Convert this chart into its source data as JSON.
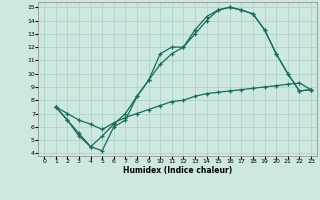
{
  "xlabel": "Humidex (Indice chaleur)",
  "bg_color": "#cce8e0",
  "line_color": "#1a6b5a",
  "grid_color": "#aacfc8",
  "xlim": [
    -0.5,
    23.5
  ],
  "ylim": [
    3.8,
    15.4
  ],
  "xticks": [
    0,
    1,
    2,
    3,
    4,
    5,
    6,
    7,
    8,
    9,
    10,
    11,
    12,
    13,
    14,
    15,
    16,
    17,
    18,
    19,
    20,
    21,
    22,
    23
  ],
  "yticks": [
    4,
    5,
    6,
    7,
    8,
    9,
    10,
    11,
    12,
    13,
    14,
    15
  ],
  "line1_x": [
    1,
    2,
    3,
    4,
    5,
    6,
    7,
    8,
    9,
    10,
    11,
    12,
    13,
    14,
    15,
    16,
    17,
    18,
    19,
    20,
    21,
    22,
    23
  ],
  "line1_y": [
    7.5,
    6.5,
    5.5,
    4.5,
    4.2,
    6.0,
    6.5,
    8.3,
    9.5,
    10.7,
    11.5,
    12.0,
    13.3,
    14.3,
    14.8,
    15.0,
    14.8,
    14.5,
    13.3,
    11.5,
    10.0,
    8.7,
    8.8
  ],
  "line2_x": [
    1,
    2,
    3,
    4,
    5,
    6,
    7,
    8,
    9,
    10,
    11,
    12,
    13,
    14,
    15,
    16,
    17,
    18,
    19,
    20,
    21,
    22,
    23
  ],
  "line2_y": [
    7.5,
    6.5,
    5.3,
    4.5,
    5.3,
    6.2,
    7.0,
    8.3,
    9.5,
    11.5,
    12.0,
    12.0,
    13.0,
    14.0,
    14.8,
    15.0,
    14.8,
    14.5,
    13.3,
    11.5,
    10.0,
    8.7,
    8.8
  ],
  "line3_x": [
    1,
    2,
    3,
    4,
    5,
    6,
    7,
    8,
    9,
    10,
    11,
    12,
    13,
    14,
    15,
    16,
    17,
    18,
    19,
    20,
    21,
    22,
    23
  ],
  "line3_y": [
    7.5,
    7.0,
    6.5,
    6.2,
    5.8,
    6.3,
    6.7,
    7.0,
    7.3,
    7.6,
    7.9,
    8.0,
    8.3,
    8.5,
    8.6,
    8.7,
    8.8,
    8.9,
    9.0,
    9.1,
    9.2,
    9.3,
    8.8
  ]
}
